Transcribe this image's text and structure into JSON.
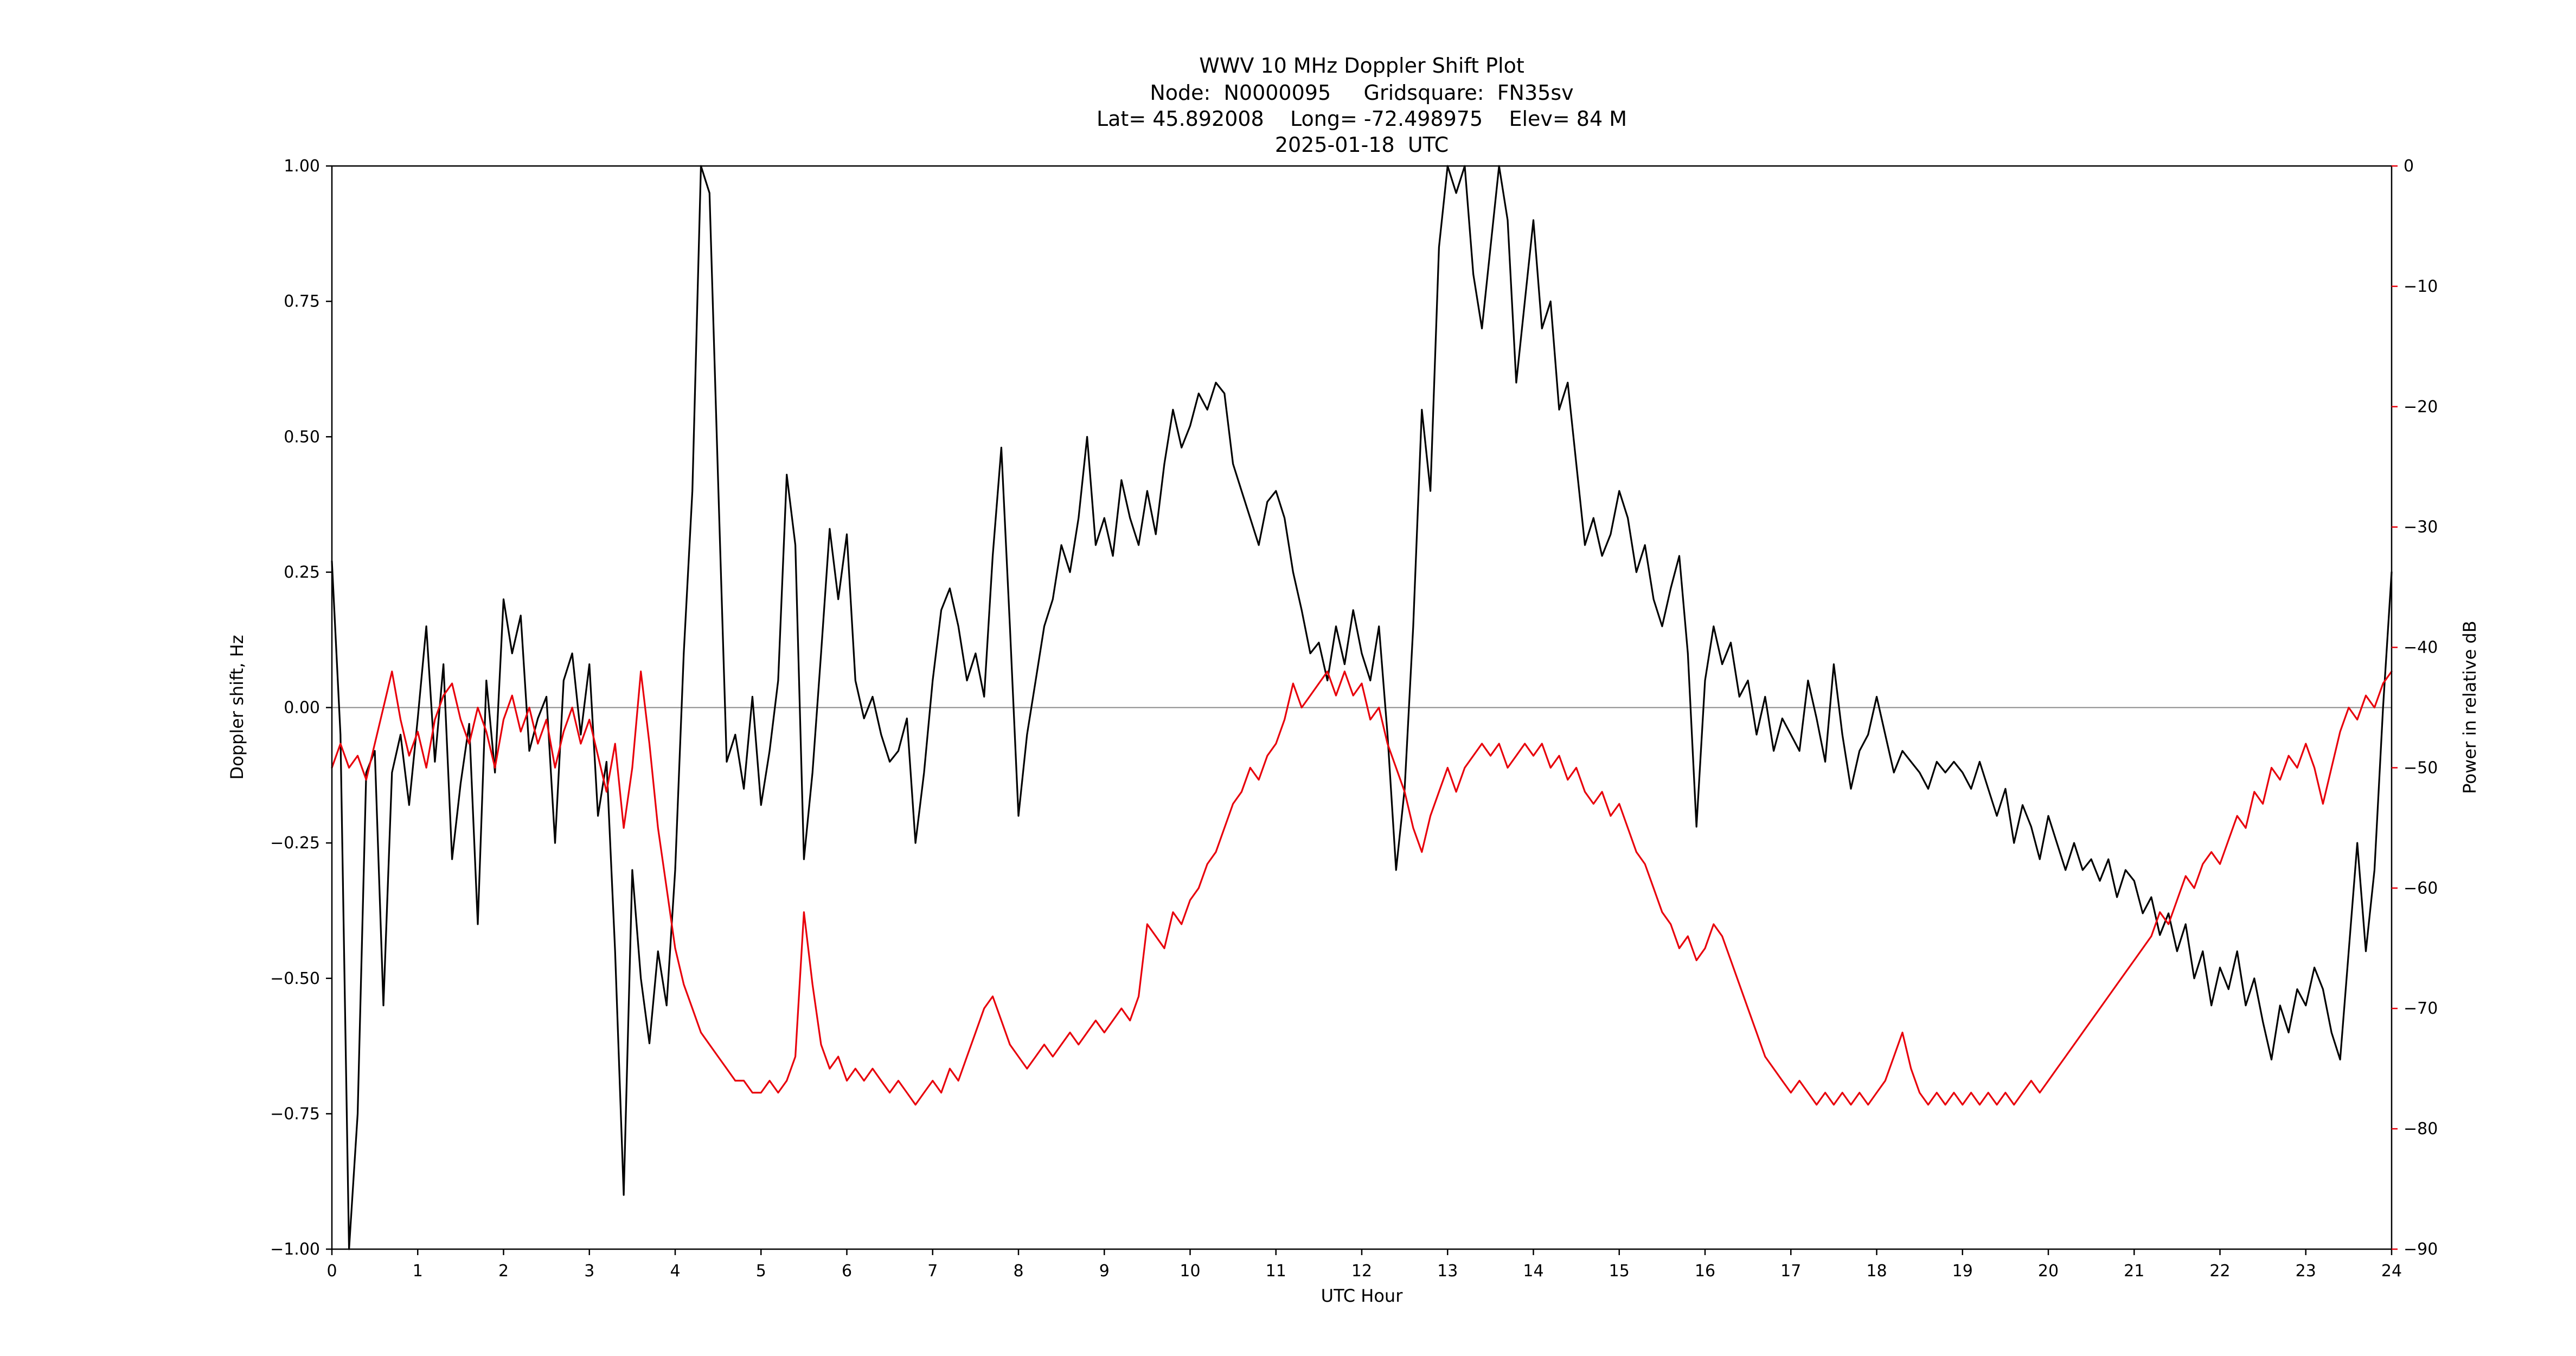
{
  "title": {
    "line1": "WWV 10 MHz Doppler Shift Plot",
    "line2": "Node:  N0000095     Gridsquare:  FN35sv",
    "line3": "Lat= 45.892008    Long= -72.498975    Elev= 84 M",
    "line4": "2025-01-18  UTC"
  },
  "colors": {
    "doppler_line": "#000000",
    "power_line": "#e8000b",
    "zero_line": "#888888",
    "axes": "#000000",
    "background": "#ffffff"
  },
  "chart_data": {
    "type": "line",
    "title": "WWV 10 MHz Doppler Shift Plot",
    "subtitle": "Node:  N0000095     Gridsquare:  FN35sv  |  Lat= 45.892008  Long= -72.498975  Elev= 84 M  |  2025-01-18 UTC",
    "xlabel": "UTC Hour",
    "ylabel_left": "Doppler shift, Hz",
    "ylabel_right": "Power in relative dB",
    "xlim": [
      0,
      24
    ],
    "ylim_left": [
      -1.0,
      1.0
    ],
    "ylim_right": [
      -90,
      0
    ],
    "grid": false,
    "legend": "none",
    "zero_reference_line_left": 0.0,
    "x_ticks": [
      0,
      1,
      2,
      3,
      4,
      5,
      6,
      7,
      8,
      9,
      10,
      11,
      12,
      13,
      14,
      15,
      16,
      17,
      18,
      19,
      20,
      21,
      22,
      23,
      24
    ],
    "x_tick_labels": [
      "0",
      "1",
      "2",
      "3",
      "4",
      "5",
      "6",
      "7",
      "8",
      "9",
      "10",
      "11",
      "12",
      "13",
      "14",
      "15",
      "16",
      "17",
      "18",
      "19",
      "20",
      "21",
      "22",
      "23",
      "24"
    ],
    "y_ticks_left": [
      -1.0,
      -0.75,
      -0.5,
      -0.25,
      0.0,
      0.25,
      0.5,
      0.75,
      1.0
    ],
    "y_tick_labels_left": [
      "−1.00",
      "−0.75",
      "−0.50",
      "−0.25",
      "0.00",
      "0.25",
      "0.50",
      "0.75",
      "1.00"
    ],
    "y_ticks_right": [
      0,
      -10,
      -20,
      -30,
      -40,
      -50,
      -60,
      -70,
      -80,
      -90
    ],
    "y_tick_labels_right": [
      "0",
      "−10",
      "−20",
      "−30",
      "−40",
      "−50",
      "−60",
      "−70",
      "−80",
      "−90"
    ],
    "x_start": 0,
    "x_step": 0.1,
    "series": [
      {
        "name": "Doppler shift (Hz)",
        "axis": "left",
        "color": "#000000",
        "values": [
          0.27,
          -0.05,
          -1.0,
          -0.75,
          -0.12,
          -0.08,
          -0.55,
          -0.12,
          -0.05,
          -0.18,
          -0.02,
          0.15,
          -0.1,
          0.08,
          -0.28,
          -0.14,
          -0.03,
          -0.4,
          0.05,
          -0.12,
          0.2,
          0.1,
          0.17,
          -0.08,
          -0.02,
          0.02,
          -0.25,
          0.05,
          0.1,
          -0.05,
          0.08,
          -0.2,
          -0.1,
          -0.45,
          -0.9,
          -0.3,
          -0.5,
          -0.62,
          -0.45,
          -0.55,
          -0.3,
          0.1,
          0.4,
          1.0,
          0.95,
          0.42,
          -0.1,
          -0.05,
          -0.15,
          0.02,
          -0.18,
          -0.08,
          0.05,
          0.43,
          0.3,
          -0.28,
          -0.12,
          0.1,
          0.33,
          0.2,
          0.32,
          0.05,
          -0.02,
          0.02,
          -0.05,
          -0.1,
          -0.08,
          -0.02,
          -0.25,
          -0.12,
          0.05,
          0.18,
          0.22,
          0.15,
          0.05,
          0.1,
          0.02,
          0.28,
          0.48,
          0.15,
          -0.2,
          -0.05,
          0.05,
          0.15,
          0.2,
          0.3,
          0.25,
          0.35,
          0.5,
          0.3,
          0.35,
          0.28,
          0.42,
          0.35,
          0.3,
          0.4,
          0.32,
          0.45,
          0.55,
          0.48,
          0.52,
          0.58,
          0.55,
          0.6,
          0.58,
          0.45,
          0.4,
          0.35,
          0.3,
          0.38,
          0.4,
          0.35,
          0.25,
          0.18,
          0.1,
          0.12,
          0.05,
          0.15,
          0.08,
          0.18,
          0.1,
          0.05,
          0.15,
          -0.05,
          -0.3,
          -0.15,
          0.15,
          0.55,
          0.4,
          0.85,
          1.0,
          0.95,
          1.0,
          0.8,
          0.7,
          0.85,
          1.0,
          0.9,
          0.6,
          0.75,
          0.9,
          0.7,
          0.75,
          0.55,
          0.6,
          0.45,
          0.3,
          0.35,
          0.28,
          0.32,
          0.4,
          0.35,
          0.25,
          0.3,
          0.2,
          0.15,
          0.22,
          0.28,
          0.1,
          -0.22,
          0.05,
          0.15,
          0.08,
          0.12,
          0.02,
          0.05,
          -0.05,
          0.02,
          -0.08,
          -0.02,
          -0.05,
          -0.08,
          0.05,
          -0.02,
          -0.1,
          0.08,
          -0.05,
          -0.15,
          -0.08,
          -0.05,
          0.02,
          -0.05,
          -0.12,
          -0.08,
          -0.1,
          -0.12,
          -0.15,
          -0.1,
          -0.12,
          -0.1,
          -0.12,
          -0.15,
          -0.1,
          -0.15,
          -0.2,
          -0.15,
          -0.25,
          -0.18,
          -0.22,
          -0.28,
          -0.2,
          -0.25,
          -0.3,
          -0.25,
          -0.3,
          -0.28,
          -0.32,
          -0.28,
          -0.35,
          -0.3,
          -0.32,
          -0.38,
          -0.35,
          -0.42,
          -0.38,
          -0.45,
          -0.4,
          -0.5,
          -0.45,
          -0.55,
          -0.48,
          -0.52,
          -0.45,
          -0.55,
          -0.5,
          -0.58,
          -0.65,
          -0.55,
          -0.6,
          -0.52,
          -0.55,
          -0.48,
          -0.52,
          -0.6,
          -0.65,
          -0.45,
          -0.25,
          -0.45,
          -0.3,
          0.0,
          0.25
        ]
      },
      {
        "name": "Power (relative dB)",
        "axis": "right",
        "color": "#e8000b",
        "values": [
          -50,
          -48,
          -50,
          -49,
          -51,
          -48,
          -45,
          -42,
          -46,
          -49,
          -47,
          -50,
          -46,
          -44,
          -43,
          -46,
          -48,
          -45,
          -47,
          -50,
          -46,
          -44,
          -47,
          -45,
          -48,
          -46,
          -50,
          -47,
          -45,
          -48,
          -46,
          -49,
          -52,
          -48,
          -55,
          -50,
          -42,
          -48,
          -55,
          -60,
          -65,
          -68,
          -70,
          -72,
          -73,
          -74,
          -75,
          -76,
          -76,
          -77,
          -77,
          -76,
          -77,
          -76,
          -74,
          -62,
          -68,
          -73,
          -75,
          -74,
          -76,
          -75,
          -76,
          -75,
          -76,
          -77,
          -76,
          -77,
          -78,
          -77,
          -76,
          -77,
          -75,
          -76,
          -74,
          -72,
          -70,
          -69,
          -71,
          -73,
          -74,
          -75,
          -74,
          -73,
          -74,
          -73,
          -72,
          -73,
          -72,
          -71,
          -72,
          -71,
          -70,
          -71,
          -69,
          -63,
          -64,
          -65,
          -62,
          -63,
          -61,
          -60,
          -58,
          -57,
          -55,
          -53,
          -52,
          -50,
          -51,
          -49,
          -48,
          -46,
          -43,
          -45,
          -44,
          -43,
          -42,
          -44,
          -42,
          -44,
          -43,
          -46,
          -45,
          -48,
          -50,
          -52,
          -55,
          -57,
          -54,
          -52,
          -50,
          -52,
          -50,
          -49,
          -48,
          -49,
          -48,
          -50,
          -49,
          -48,
          -49,
          -48,
          -50,
          -49,
          -51,
          -50,
          -52,
          -53,
          -52,
          -54,
          -53,
          -55,
          -57,
          -58,
          -60,
          -62,
          -63,
          -65,
          -64,
          -66,
          -65,
          -63,
          -64,
          -66,
          -68,
          -70,
          -72,
          -74,
          -75,
          -76,
          -77,
          -76,
          -77,
          -78,
          -77,
          -78,
          -77,
          -78,
          -77,
          -78,
          -77,
          -76,
          -74,
          -72,
          -75,
          -77,
          -78,
          -77,
          -78,
          -77,
          -78,
          -77,
          -78,
          -77,
          -78,
          -77,
          -78,
          -77,
          -76,
          -77,
          -76,
          -75,
          -74,
          -73,
          -72,
          -71,
          -70,
          -69,
          -68,
          -67,
          -66,
          -65,
          -64,
          -62,
          -63,
          -61,
          -59,
          -60,
          -58,
          -57,
          -58,
          -56,
          -54,
          -55,
          -52,
          -53,
          -50,
          -51,
          -49,
          -50,
          -48,
          -50,
          -53,
          -50,
          -47,
          -45,
          -46,
          -44,
          -45,
          -43,
          -42
        ]
      }
    ]
  }
}
